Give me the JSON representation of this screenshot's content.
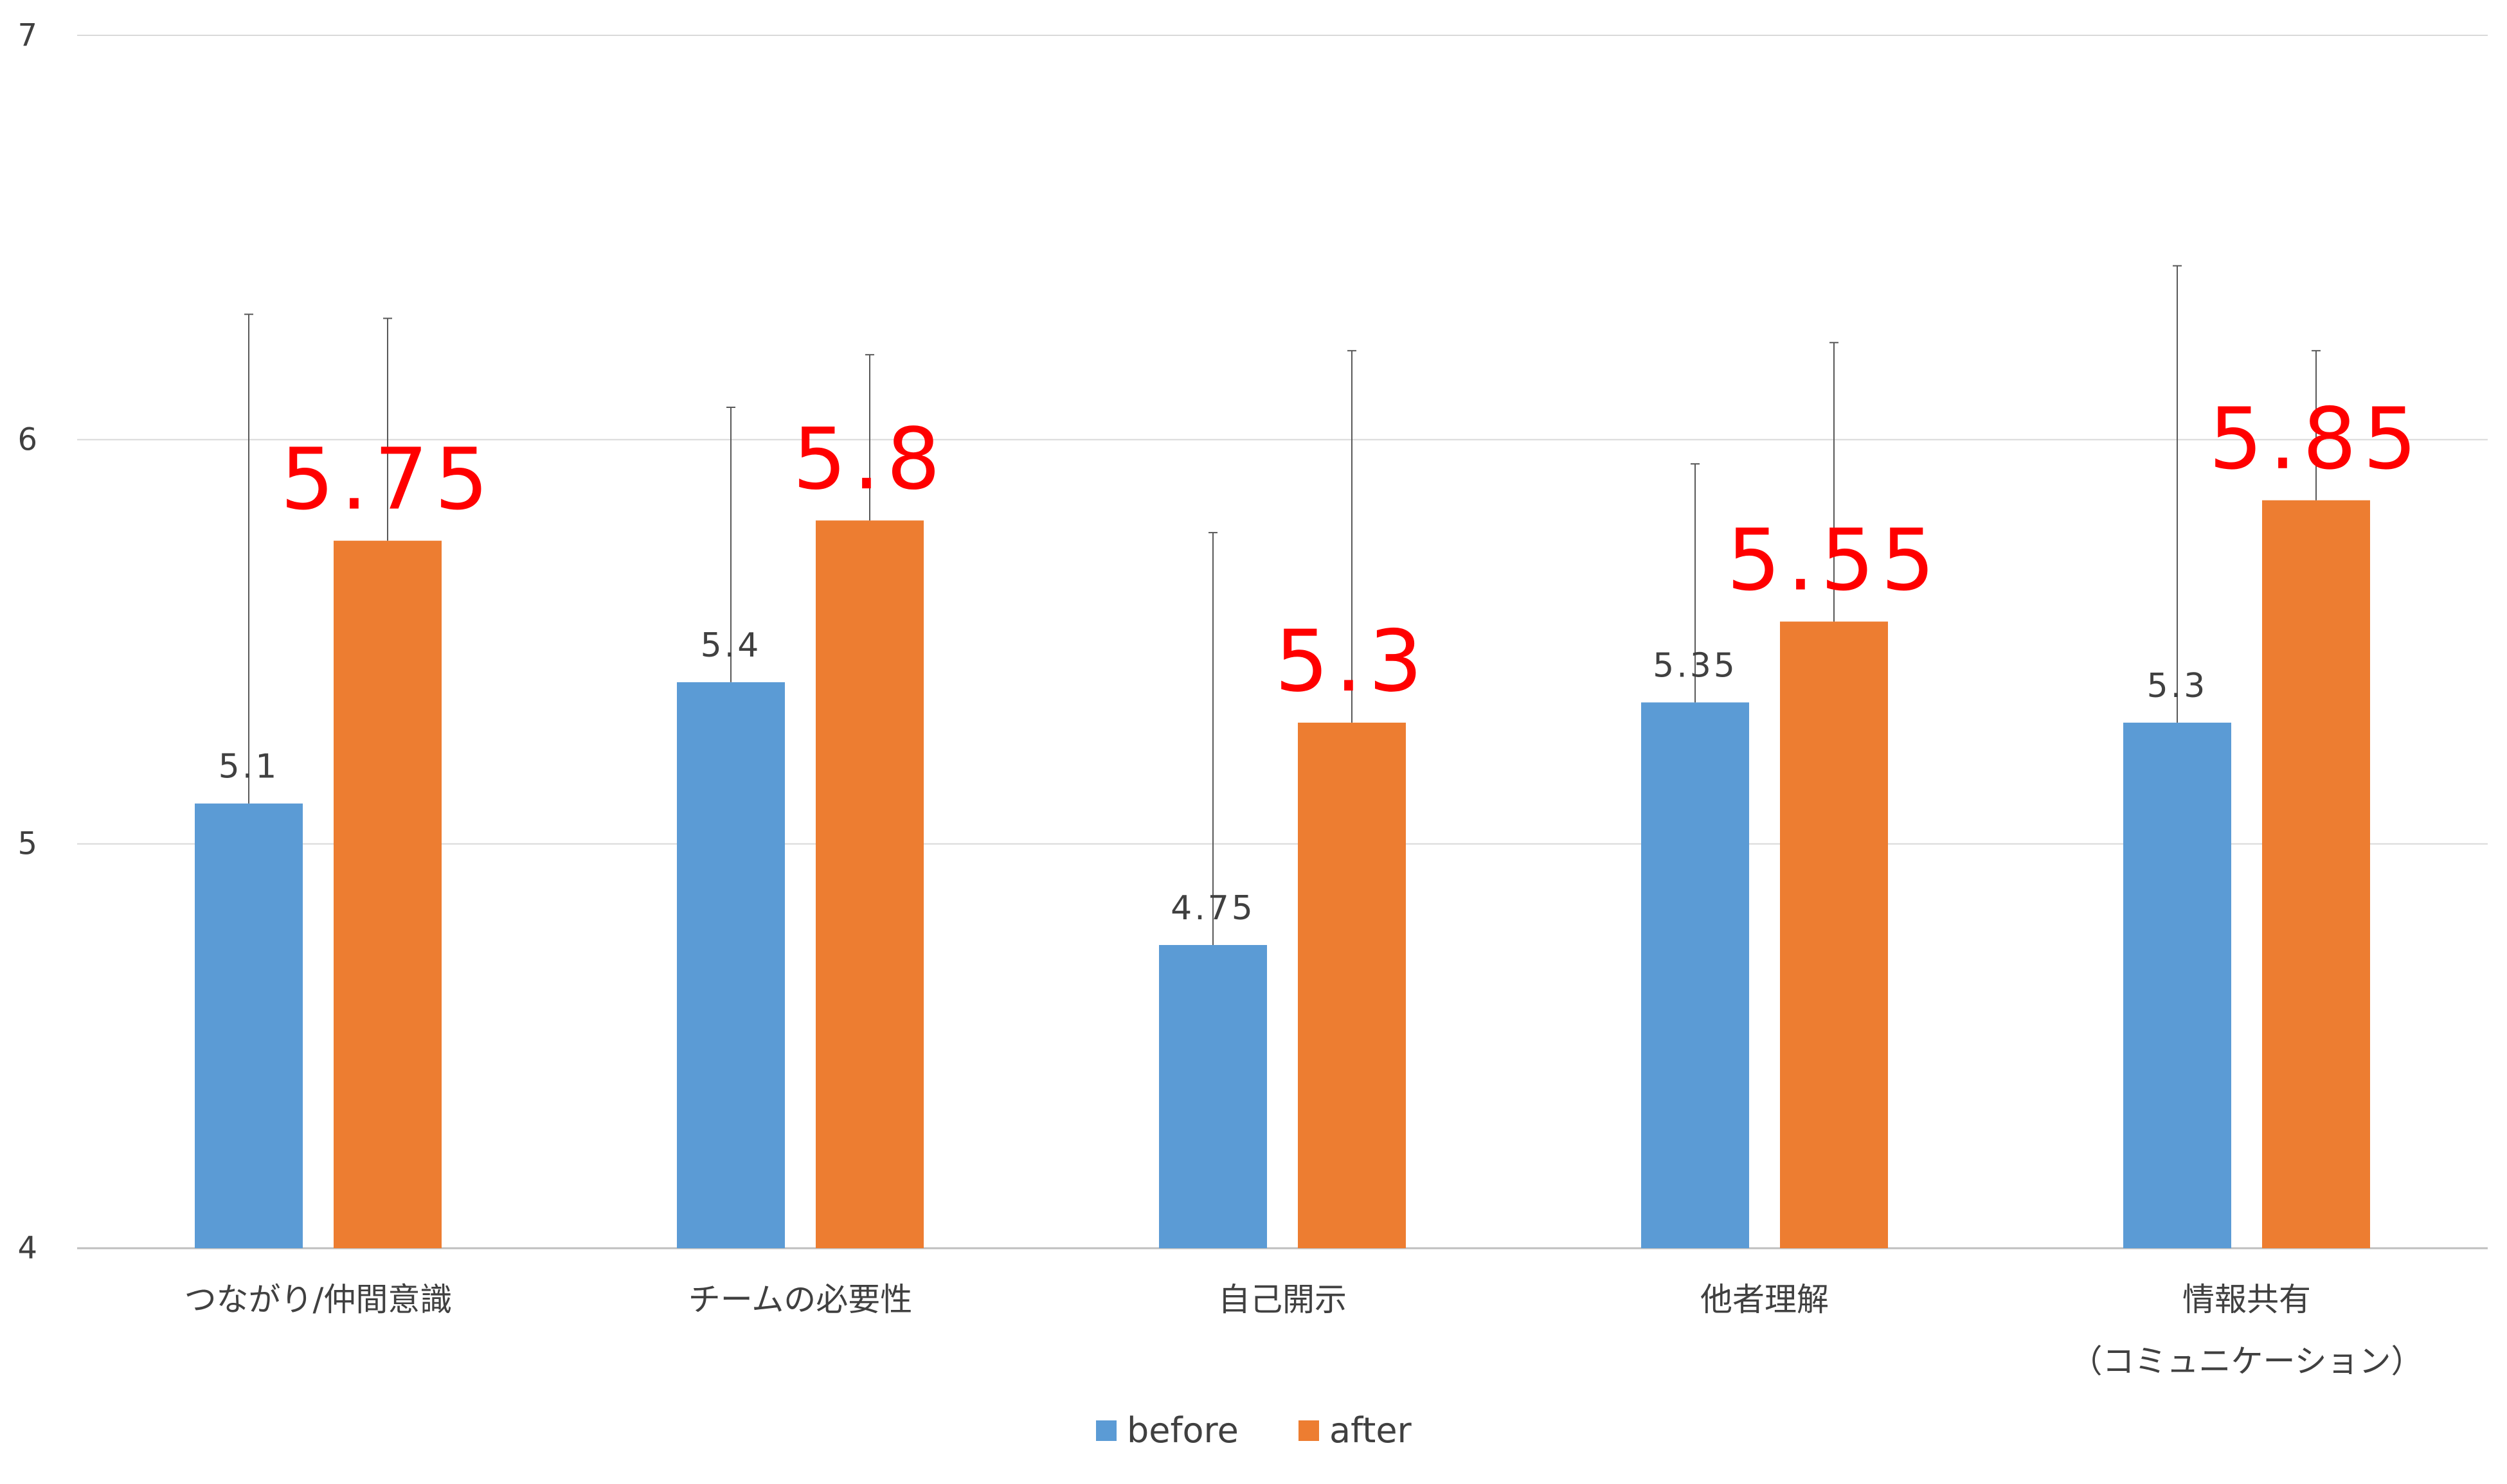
{
  "chart_data": {
    "type": "bar",
    "title": "",
    "xlabel": "",
    "ylabel": "",
    "ylim": [
      4,
      7
    ],
    "yticks": [
      4,
      5,
      6,
      7
    ],
    "grid": "horizontal",
    "legend_position": "bottom",
    "categories": [
      [
        "つながり/仲間意識"
      ],
      [
        "チームの必要性"
      ],
      [
        "自己開示"
      ],
      [
        "他者理解"
      ],
      [
        "情報共有",
        "（コミュニケーション）"
      ]
    ],
    "series": [
      {
        "name": "before",
        "color": "#5b9bd5",
        "values": [
          5.1,
          5.4,
          4.75,
          5.35,
          5.3
        ],
        "labels": [
          "5.1",
          "5.4",
          "4.75",
          "5.35",
          "5.3"
        ],
        "error_upper": [
          6.31,
          6.08,
          5.77,
          5.94,
          6.43
        ]
      },
      {
        "name": "after",
        "color": "#ed7d31",
        "values": [
          5.75,
          5.8,
          5.3,
          5.55,
          5.85
        ],
        "labels": [
          "5.75",
          "5.8",
          "5.3",
          "5.55",
          "5.85"
        ],
        "error_upper": [
          6.3,
          6.21,
          6.22,
          6.24,
          6.22
        ]
      }
    ],
    "colors": {
      "grid": "#d9d9d9",
      "axis": "#bfbfbf",
      "tick_text": "#404040",
      "error_bar": "#595959",
      "after_label": "#ff0000"
    }
  }
}
